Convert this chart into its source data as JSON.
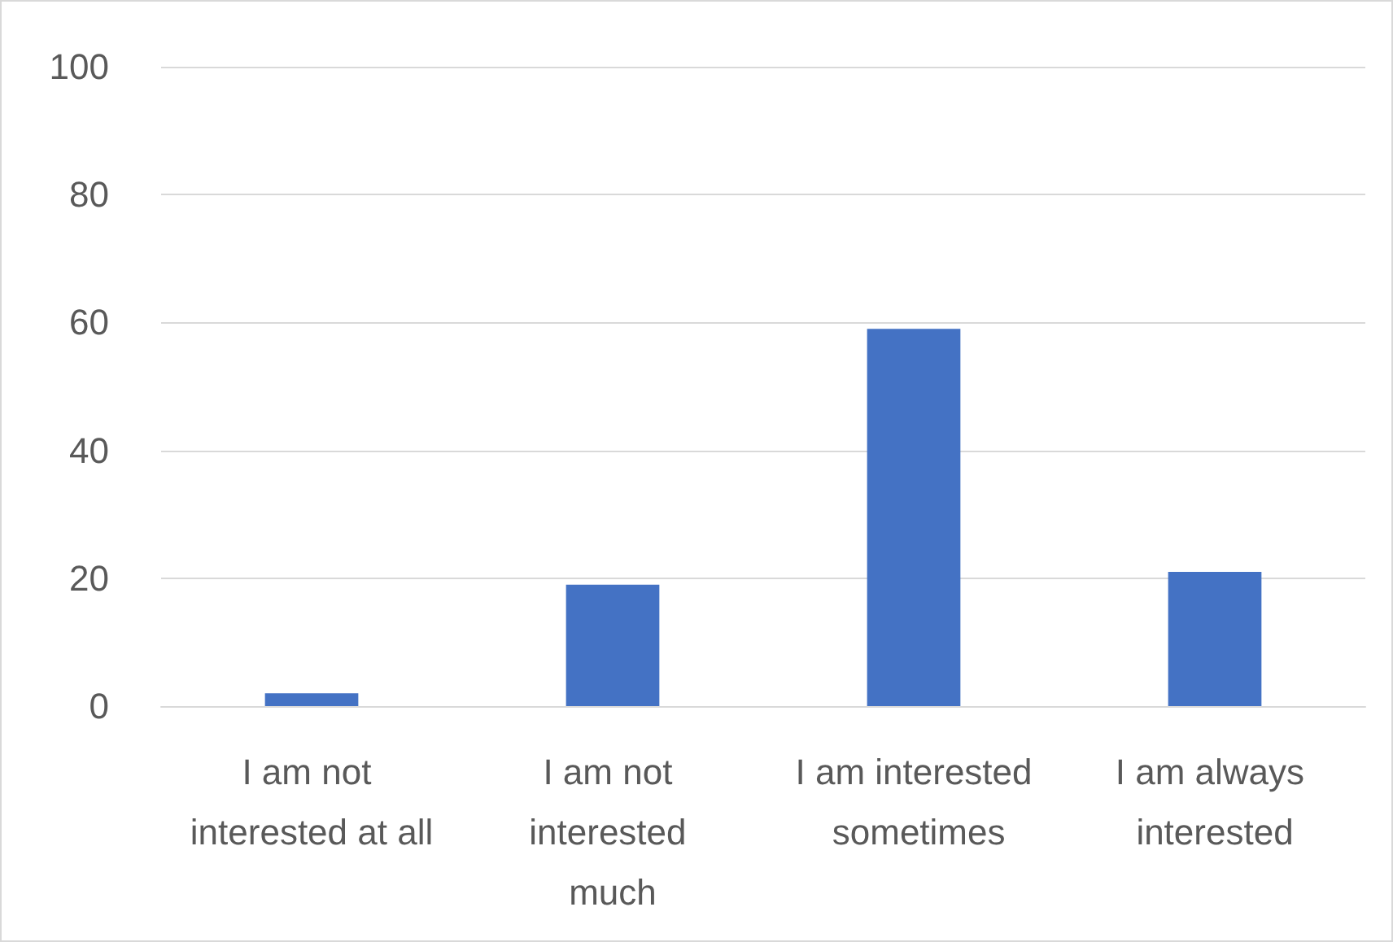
{
  "chart_data": {
    "type": "bar",
    "categories": [
      "I am not interested at all",
      "I am not interested much",
      "I am interested sometimes",
      "I am always interested"
    ],
    "values": [
      2,
      19,
      59,
      21
    ],
    "color": "#4472c4",
    "ylim": [
      0,
      100
    ],
    "yticks": [
      0,
      20,
      40,
      60,
      80,
      100
    ],
    "grid": "y"
  }
}
